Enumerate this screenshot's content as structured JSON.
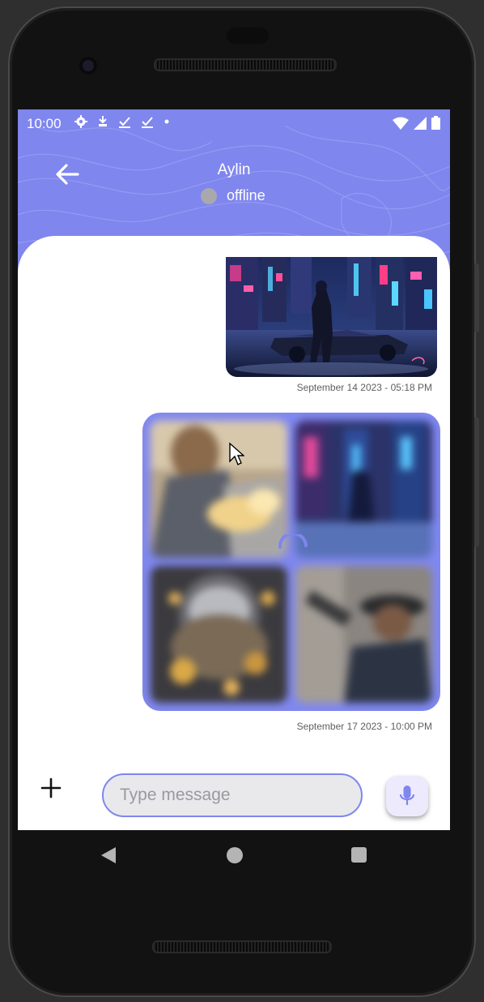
{
  "status_bar": {
    "time": "10:00",
    "icons": [
      "settings-icon",
      "data-saver-icon",
      "download-done-icon",
      "download-done-icon",
      "dot-icon"
    ],
    "right_icons": [
      "wifi-icon",
      "signal-icon",
      "battery-icon"
    ]
  },
  "header": {
    "contact_name": "Aylin",
    "presence": "offline",
    "presence_color": "#a9a9ad",
    "accent_color": "#7f86ee"
  },
  "messages": [
    {
      "type": "image",
      "image": "cyberpunk-city-woman-image",
      "timestamp": "September 14 2023 - 05:18 PM"
    },
    {
      "type": "image-grid",
      "images": [
        "golden-figure-image",
        "neon-city-image",
        "helmet-gold-image",
        "cowboy-gun-image"
      ],
      "loading": true,
      "timestamp": "September 17 2023 - 10:00 PM"
    }
  ],
  "composer": {
    "placeholder": "Type message",
    "value": "",
    "add_icon": "plus-icon",
    "mic_icon": "microphone-icon"
  },
  "nav_bar": [
    "back-triangle-icon",
    "home-circle-icon",
    "recents-square-icon"
  ]
}
